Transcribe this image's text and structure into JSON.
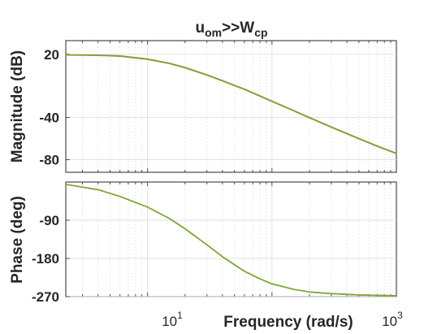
{
  "chart_data": [
    {
      "type": "line",
      "panel": "magnitude",
      "title_main": "u",
      "title_sub1": "om",
      "title_mid": ">>W",
      "title_sub2": "cp",
      "ylabel": "Magnitude (dB)",
      "xscale": "log",
      "xlim": [
        2.2,
        1000
      ],
      "ylim": [
        -92,
        33
      ],
      "yticks": [
        20,
        -40,
        -80
      ],
      "ytick_labels": [
        "20",
        "-40",
        "-80"
      ],
      "grid": true,
      "series": [
        {
          "color": "#b5553a",
          "x": [
            2.2,
            4,
            6,
            10,
            15,
            20,
            30,
            40,
            50,
            60,
            70,
            80,
            100,
            150,
            200,
            300,
            500,
            700,
            1000
          ],
          "y": [
            19.5,
            19.2,
            18.5,
            15.5,
            11.5,
            7.5,
            0.5,
            -5,
            -9.5,
            -13,
            -16.5,
            -19.5,
            -24.5,
            -33.5,
            -40,
            -49,
            -60,
            -67,
            -74
          ]
        },
        {
          "color": "#77ac30",
          "x": [
            2.2,
            4,
            6,
            10,
            15,
            20,
            30,
            40,
            50,
            60,
            70,
            80,
            100,
            150,
            200,
            300,
            500,
            700,
            1000
          ],
          "y": [
            19.3,
            19.0,
            18.2,
            15.2,
            11.2,
            7.2,
            0.2,
            -5.3,
            -9.8,
            -13.3,
            -16.8,
            -19.8,
            -24.8,
            -33.8,
            -40.3,
            -49.3,
            -60.3,
            -67.3,
            -74.3
          ]
        }
      ]
    },
    {
      "type": "line",
      "panel": "phase",
      "ylabel": "Phase (deg)",
      "xlabel": "Frequency (rad/s)",
      "xscale": "log",
      "xlim": [
        2.2,
        1000
      ],
      "ylim": [
        -270,
        0
      ],
      "yticks": [
        -90,
        -180,
        -270
      ],
      "ytick_labels": [
        "-90",
        "-180",
        "-270"
      ],
      "xtick_base": "10",
      "xtick_exps": [
        "1",
        "3"
      ],
      "xticks": [
        10,
        1000
      ],
      "grid": true,
      "series": [
        {
          "color": "#b5553a",
          "x": [
            2.2,
            4,
            6,
            10,
            15,
            20,
            30,
            40,
            50,
            60,
            70,
            80,
            100,
            150,
            200,
            300,
            500,
            700,
            1000
          ],
          "y": [
            -5.5,
            -18,
            -34,
            -59,
            -86,
            -110,
            -148,
            -176,
            -195,
            -210,
            -220,
            -228,
            -240,
            -253,
            -259,
            -263,
            -266,
            -267,
            -268
          ]
        },
        {
          "color": "#77ac30",
          "x": [
            2.2,
            4,
            6,
            10,
            15,
            20,
            30,
            40,
            50,
            60,
            70,
            80,
            100,
            150,
            200,
            300,
            500,
            700,
            1000
          ],
          "y": [
            -5.5,
            -18,
            -34,
            -59,
            -86,
            -110,
            -148,
            -176,
            -195,
            -210,
            -220,
            -228,
            -240,
            -253,
            -259,
            -263,
            -266,
            -267,
            -268
          ]
        }
      ]
    }
  ]
}
